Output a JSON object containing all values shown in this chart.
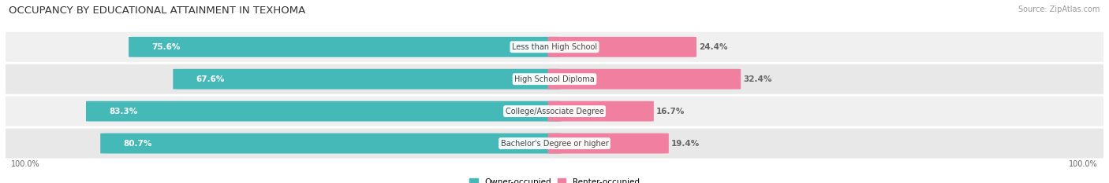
{
  "title": "OCCUPANCY BY EDUCATIONAL ATTAINMENT IN TEXHOMA",
  "source": "Source: ZipAtlas.com",
  "categories": [
    "Less than High School",
    "High School Diploma",
    "College/Associate Degree",
    "Bachelor's Degree or higher"
  ],
  "owner_values": [
    75.6,
    67.6,
    83.3,
    80.7
  ],
  "renter_values": [
    24.4,
    32.4,
    16.7,
    19.4
  ],
  "owner_color": "#45b8b8",
  "renter_color": "#f07fa0",
  "row_bg_even": "#f0f0f0",
  "row_bg_odd": "#e8e8e8",
  "label_white": "#ffffff",
  "label_dark": "#666666",
  "axis_label_left": "100.0%",
  "axis_label_right": "100.0%",
  "legend_owner": "Owner-occupied",
  "legend_renter": "Renter-occupied",
  "title_fontsize": 9.5,
  "bar_label_fontsize": 7.5,
  "cat_label_fontsize": 7.0,
  "legend_fontsize": 7.5,
  "axis_fontsize": 7.0,
  "source_fontsize": 7.0
}
